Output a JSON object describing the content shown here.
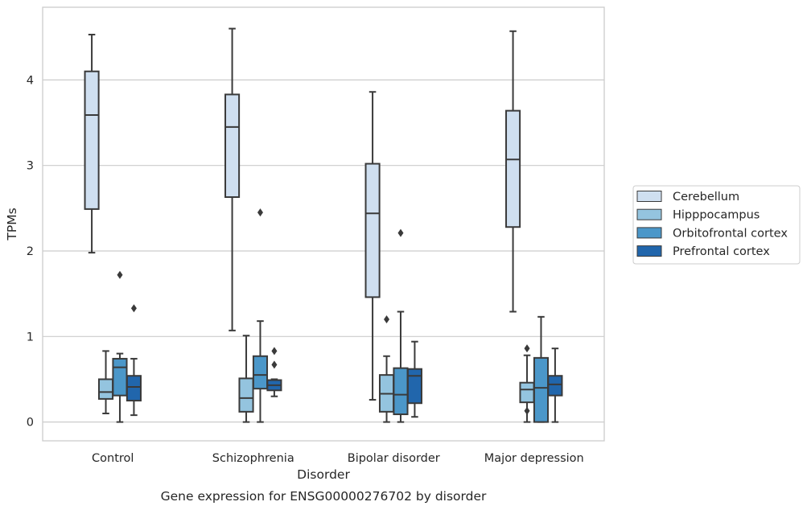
{
  "chart_data": {
    "type": "box",
    "title": "",
    "caption": "Gene expression for ENSG00000276702 by disorder",
    "xlabel": "Disorder",
    "ylabel": "TPMs",
    "categories": [
      "Control",
      "Schizophrenia",
      "Bipolar disorder",
      "Major depression"
    ],
    "yticks": [
      0,
      1,
      2,
      3,
      4
    ],
    "ylim": [
      -0.22,
      4.85
    ],
    "grid": "horizontal",
    "legend_position": "right",
    "series": [
      {
        "name": "Cerebellum",
        "color": "#cfdff0",
        "boxes": [
          {
            "whislo": 1.98,
            "q1": 2.49,
            "med": 3.59,
            "q3": 4.1,
            "whishi": 4.53,
            "fliers": []
          },
          {
            "whislo": 1.07,
            "q1": 2.63,
            "med": 3.45,
            "q3": 3.83,
            "whishi": 4.6,
            "fliers": []
          },
          {
            "whislo": 0.26,
            "q1": 1.46,
            "med": 2.44,
            "q3": 3.02,
            "whishi": 3.86,
            "fliers": []
          },
          {
            "whislo": 1.29,
            "q1": 2.28,
            "med": 3.07,
            "q3": 3.64,
            "whishi": 4.57,
            "fliers": []
          }
        ]
      },
      {
        "name": "Hipppocampus",
        "color": "#94c4df",
        "boxes": [
          {
            "whislo": 0.1,
            "q1": 0.27,
            "med": 0.35,
            "q3": 0.5,
            "whishi": 0.83,
            "fliers": []
          },
          {
            "whislo": 0.0,
            "q1": 0.12,
            "med": 0.28,
            "q3": 0.51,
            "whishi": 1.01,
            "fliers": []
          },
          {
            "whislo": 0.0,
            "q1": 0.12,
            "med": 0.33,
            "q3": 0.55,
            "whishi": 0.77,
            "fliers": [
              1.2
            ]
          },
          {
            "whislo": 0.0,
            "q1": 0.23,
            "med": 0.38,
            "q3": 0.46,
            "whishi": 0.78,
            "fliers": [
              0.86,
              0.13
            ]
          }
        ]
      },
      {
        "name": "Orbitofrontal cortex",
        "color": "#4b97c9",
        "boxes": [
          {
            "whislo": 0.0,
            "q1": 0.31,
            "med": 0.64,
            "q3": 0.74,
            "whishi": 0.8,
            "fliers": [
              1.72
            ]
          },
          {
            "whislo": 0.0,
            "q1": 0.39,
            "med": 0.55,
            "q3": 0.77,
            "whishi": 1.18,
            "fliers": [
              2.45
            ]
          },
          {
            "whislo": 0.0,
            "q1": 0.09,
            "med": 0.32,
            "q3": 0.63,
            "whishi": 1.29,
            "fliers": [
              2.21
            ]
          },
          {
            "whislo": 0.0,
            "q1": 0.0,
            "med": 0.4,
            "q3": 0.75,
            "whishi": 1.23,
            "fliers": []
          }
        ]
      },
      {
        "name": "Prefrontal cortex",
        "color": "#2166ac",
        "boxes": [
          {
            "whislo": 0.08,
            "q1": 0.25,
            "med": 0.41,
            "q3": 0.54,
            "whishi": 0.74,
            "fliers": [
              1.33
            ]
          },
          {
            "whislo": 0.3,
            "q1": 0.37,
            "med": 0.43,
            "q3": 0.49,
            "whishi": 0.5,
            "fliers": [
              0.83,
              0.67
            ]
          },
          {
            "whislo": 0.06,
            "q1": 0.22,
            "med": 0.54,
            "q3": 0.62,
            "whishi": 0.94,
            "fliers": []
          },
          {
            "whislo": 0.0,
            "q1": 0.31,
            "med": 0.44,
            "q3": 0.54,
            "whishi": 0.86,
            "fliers": []
          }
        ]
      }
    ]
  }
}
